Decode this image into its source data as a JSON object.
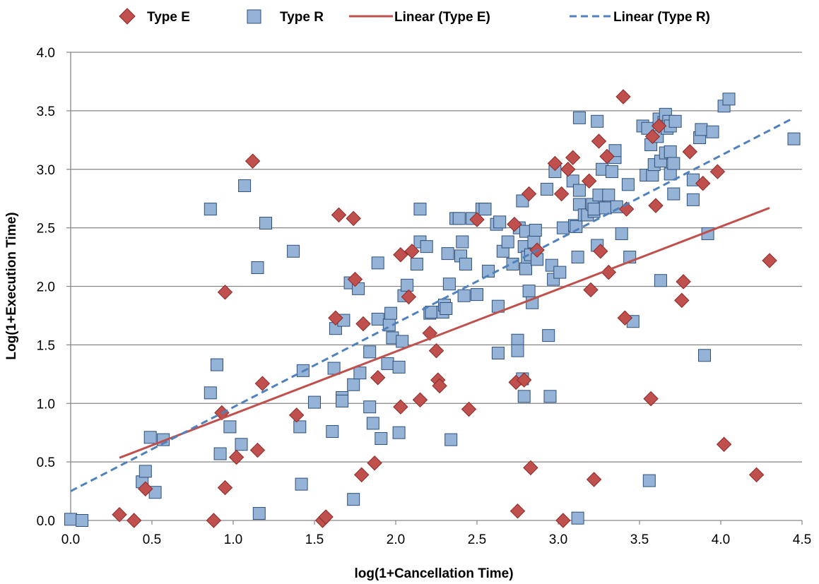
{
  "chart_data": {
    "type": "scatter",
    "title": "",
    "xlabel": "log(1+Cancellation Time)",
    "ylabel": "Log(1+Execution Time)",
    "xlim": [
      0,
      4.5
    ],
    "ylim": [
      0,
      4.0
    ],
    "grid": "horizontal",
    "legend_position": "top",
    "x_ticks": [
      "0.0",
      "0.5",
      "1.0",
      "1.5",
      "2.0",
      "2.5",
      "3.0",
      "3.5",
      "4.0",
      "4.5"
    ],
    "y_ticks": [
      "0.0",
      "0.5",
      "1.0",
      "1.5",
      "2.0",
      "2.5",
      "3.0",
      "3.5",
      "4.0"
    ],
    "legend": [
      "Type E",
      "Type R",
      "Linear (Type E)",
      "Linear (Type R)"
    ],
    "colors": {
      "type_e_fill": "#C0504D",
      "type_e_stroke": "#8C2A28",
      "type_r_fill": "#95B3D7",
      "type_r_stroke": "#2E4F7A",
      "trend_e": "#C0504D",
      "trend_r": "#4F81BD",
      "grid": "#868686"
    },
    "series": [
      {
        "name": "Type E",
        "marker": "diamond",
        "points": [
          [
            0.3,
            0.05
          ],
          [
            0.39,
            0.0
          ],
          [
            0.46,
            0.27
          ],
          [
            0.88,
            0.0
          ],
          [
            0.93,
            0.92
          ],
          [
            0.95,
            0.28
          ],
          [
            0.95,
            1.95
          ],
          [
            1.02,
            0.54
          ],
          [
            1.12,
            3.07
          ],
          [
            1.15,
            0.6
          ],
          [
            1.18,
            1.17
          ],
          [
            1.39,
            0.9
          ],
          [
            1.55,
            0.0
          ],
          [
            1.57,
            0.03
          ],
          [
            1.63,
            1.73
          ],
          [
            1.65,
            2.61
          ],
          [
            1.74,
            2.58
          ],
          [
            1.75,
            2.06
          ],
          [
            1.79,
            0.39
          ],
          [
            1.8,
            1.68
          ],
          [
            1.87,
            0.49
          ],
          [
            1.89,
            1.22
          ],
          [
            2.03,
            2.27
          ],
          [
            2.03,
            0.97
          ],
          [
            2.08,
            1.91
          ],
          [
            2.1,
            2.3
          ],
          [
            2.15,
            1.03
          ],
          [
            2.21,
            1.6
          ],
          [
            2.25,
            1.45
          ],
          [
            2.26,
            1.2
          ],
          [
            2.27,
            1.15
          ],
          [
            2.45,
            0.95
          ],
          [
            2.5,
            2.57
          ],
          [
            2.73,
            2.53
          ],
          [
            2.74,
            1.18
          ],
          [
            2.75,
            0.08
          ],
          [
            2.79,
            1.2
          ],
          [
            2.82,
            2.79
          ],
          [
            2.83,
            0.45
          ],
          [
            2.87,
            2.31
          ],
          [
            2.98,
            3.05
          ],
          [
            3.02,
            2.79
          ],
          [
            3.03,
            0.0
          ],
          [
            3.06,
            3.0
          ],
          [
            3.09,
            3.1
          ],
          [
            3.19,
            2.9
          ],
          [
            3.2,
            1.97
          ],
          [
            3.22,
            0.35
          ],
          [
            3.25,
            3.24
          ],
          [
            3.26,
            2.3
          ],
          [
            3.3,
            3.11
          ],
          [
            3.31,
            2.12
          ],
          [
            3.41,
            1.73
          ],
          [
            3.4,
            3.62
          ],
          [
            3.42,
            2.66
          ],
          [
            3.57,
            1.04
          ],
          [
            3.58,
            3.28
          ],
          [
            3.6,
            2.69
          ],
          [
            3.62,
            3.37
          ],
          [
            3.77,
            2.04
          ],
          [
            3.76,
            1.88
          ],
          [
            3.81,
            3.15
          ],
          [
            3.89,
            2.88
          ],
          [
            3.98,
            2.98
          ],
          [
            4.02,
            0.65
          ],
          [
            4.22,
            0.39
          ],
          [
            4.3,
            2.22
          ]
        ]
      },
      {
        "name": "Type R",
        "marker": "square",
        "points": [
          [
            0.0,
            0.01
          ],
          [
            0.07,
            0.0
          ],
          [
            0.44,
            0.33
          ],
          [
            0.46,
            0.42
          ],
          [
            0.49,
            0.71
          ],
          [
            0.52,
            0.24
          ],
          [
            0.57,
            0.69
          ],
          [
            0.86,
            1.09
          ],
          [
            0.86,
            2.66
          ],
          [
            0.9,
            1.33
          ],
          [
            0.92,
            0.57
          ],
          [
            0.98,
            0.8
          ],
          [
            1.05,
            0.65
          ],
          [
            1.07,
            2.86
          ],
          [
            1.15,
            2.16
          ],
          [
            1.16,
            0.06
          ],
          [
            1.2,
            2.54
          ],
          [
            1.37,
            2.3
          ],
          [
            1.41,
            0.8
          ],
          [
            1.42,
            0.31
          ],
          [
            1.43,
            1.28
          ],
          [
            1.5,
            1.01
          ],
          [
            1.61,
            0.76
          ],
          [
            1.62,
            1.3
          ],
          [
            1.63,
            1.64
          ],
          [
            1.67,
            1.05
          ],
          [
            1.67,
            1.02
          ],
          [
            1.68,
            1.71
          ],
          [
            1.72,
            2.03
          ],
          [
            1.74,
            1.16
          ],
          [
            1.74,
            0.18
          ],
          [
            1.77,
            1.98
          ],
          [
            1.78,
            1.26
          ],
          [
            1.84,
            0.97
          ],
          [
            1.84,
            1.44
          ],
          [
            1.86,
            0.83
          ],
          [
            1.89,
            1.72
          ],
          [
            1.89,
            2.2
          ],
          [
            1.91,
            0.7
          ],
          [
            1.95,
            1.34
          ],
          [
            1.96,
            1.67
          ],
          [
            1.97,
            1.77
          ],
          [
            1.98,
            1.56
          ],
          [
            2.02,
            0.75
          ],
          [
            2.02,
            1.31
          ],
          [
            2.04,
            1.53
          ],
          [
            2.05,
            1.92
          ],
          [
            2.07,
            2.01
          ],
          [
            2.13,
            2.19
          ],
          [
            2.15,
            2.38
          ],
          [
            2.15,
            2.66
          ],
          [
            2.19,
            2.34
          ],
          [
            2.21,
            1.77
          ],
          [
            2.22,
            1.78
          ],
          [
            2.29,
            1.78
          ],
          [
            2.3,
            1.84
          ],
          [
            2.31,
            1.81
          ],
          [
            2.32,
            2.28
          ],
          [
            2.33,
            2.02
          ],
          [
            2.34,
            0.69
          ],
          [
            2.37,
            2.58
          ],
          [
            2.39,
            2.58
          ],
          [
            2.4,
            2.26
          ],
          [
            2.41,
            2.38
          ],
          [
            2.42,
            1.92
          ],
          [
            2.43,
            2.19
          ],
          [
            2.47,
            2.58
          ],
          [
            2.5,
            1.93
          ],
          [
            2.53,
            2.66
          ],
          [
            2.55,
            2.66
          ],
          [
            2.57,
            2.13
          ],
          [
            2.62,
            2.53
          ],
          [
            2.63,
            1.83
          ],
          [
            2.63,
            1.43
          ],
          [
            2.64,
            2.55
          ],
          [
            2.66,
            2.3
          ],
          [
            2.69,
            2.38
          ],
          [
            2.72,
            2.19
          ],
          [
            2.75,
            1.54
          ],
          [
            2.75,
            1.45
          ],
          [
            2.76,
            2.5
          ],
          [
            2.78,
            1.21
          ],
          [
            2.78,
            2.73
          ],
          [
            2.79,
            1.06
          ],
          [
            2.79,
            2.34
          ],
          [
            2.8,
            2.47
          ],
          [
            2.8,
            2.15
          ],
          [
            2.81,
            2.25
          ],
          [
            2.82,
            1.96
          ],
          [
            2.83,
            2.27
          ],
          [
            2.84,
            1.86
          ],
          [
            2.85,
            2.38
          ],
          [
            2.86,
            2.48
          ],
          [
            2.87,
            2.23
          ],
          [
            2.93,
            2.83
          ],
          [
            2.94,
            1.58
          ],
          [
            2.95,
            1.06
          ],
          [
            2.96,
            2.18
          ],
          [
            2.97,
            2.06
          ],
          [
            2.98,
            2.98
          ],
          [
            3.01,
            2.12
          ],
          [
            3.03,
            2.5
          ],
          [
            3.09,
            2.9
          ],
          [
            3.1,
            2.52
          ],
          [
            3.11,
            2.51
          ],
          [
            3.12,
            0.02
          ],
          [
            3.12,
            2.25
          ],
          [
            3.13,
            2.82
          ],
          [
            3.13,
            2.7
          ],
          [
            3.13,
            3.44
          ],
          [
            3.16,
            2.61
          ],
          [
            3.18,
            2.61
          ],
          [
            3.21,
            2.7
          ],
          [
            3.22,
            2.64
          ],
          [
            3.22,
            2.66
          ],
          [
            3.24,
            3.41
          ],
          [
            3.24,
            2.35
          ],
          [
            3.25,
            2.78
          ],
          [
            3.27,
            3.0
          ],
          [
            3.29,
            2.67
          ],
          [
            3.31,
            2.78
          ],
          [
            3.33,
            2.98
          ],
          [
            3.35,
            3.1
          ],
          [
            3.35,
            3.16
          ],
          [
            3.36,
            2.68
          ],
          [
            3.39,
            2.45
          ],
          [
            3.43,
            2.87
          ],
          [
            3.44,
            2.25
          ],
          [
            3.46,
            1.7
          ],
          [
            3.52,
            3.37
          ],
          [
            3.54,
            2.95
          ],
          [
            3.55,
            3.35
          ],
          [
            3.56,
            0.34
          ],
          [
            3.57,
            3.21
          ],
          [
            3.58,
            2.95
          ],
          [
            3.59,
            3.04
          ],
          [
            3.61,
            3.28
          ],
          [
            3.62,
            3.43
          ],
          [
            3.63,
            3.07
          ],
          [
            3.63,
            2.05
          ],
          [
            3.65,
            3.4
          ],
          [
            3.66,
            3.47
          ],
          [
            3.66,
            3.14
          ],
          [
            3.67,
            3.35
          ],
          [
            3.68,
            3.41
          ],
          [
            3.69,
            2.96
          ],
          [
            3.69,
            3.15
          ],
          [
            3.69,
            3.37
          ],
          [
            3.71,
            2.79
          ],
          [
            3.71,
            3.05
          ],
          [
            3.72,
            3.41
          ],
          [
            3.83,
            2.74
          ],
          [
            3.83,
            2.91
          ],
          [
            3.87,
            3.27
          ],
          [
            3.88,
            3.34
          ],
          [
            3.9,
            1.41
          ],
          [
            3.92,
            2.45
          ],
          [
            3.95,
            3.32
          ],
          [
            4.02,
            3.54
          ],
          [
            4.05,
            3.6
          ],
          [
            4.45,
            3.26
          ]
        ]
      }
    ],
    "trendlines": [
      {
        "name": "Linear (Type E)",
        "x": [
          0.3,
          4.3
        ],
        "y": [
          0.535,
          2.67
        ],
        "style": "solid"
      },
      {
        "name": "Linear (Type R)",
        "x": [
          0.0,
          4.45
        ],
        "y": [
          0.25,
          3.44
        ],
        "style": "dashed"
      }
    ]
  }
}
